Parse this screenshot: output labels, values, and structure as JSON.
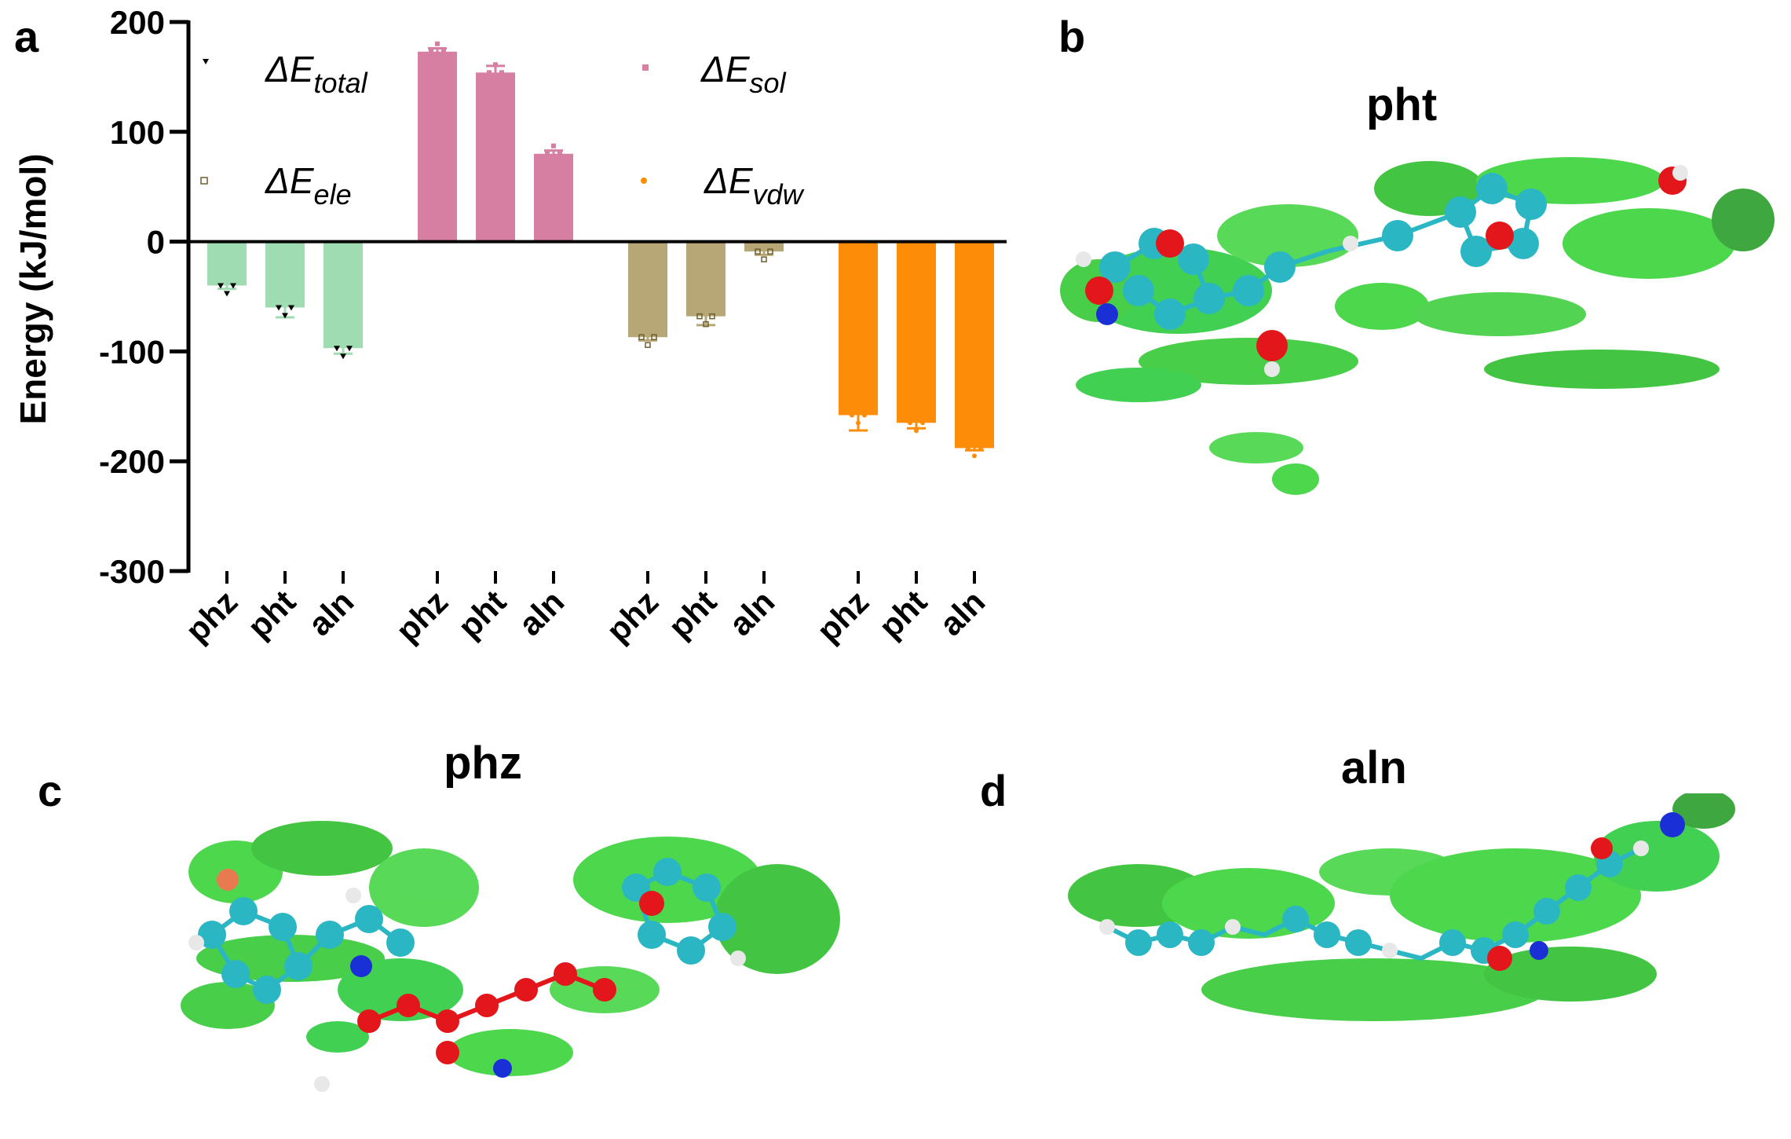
{
  "panels": {
    "a": "a",
    "b": "b",
    "c": "c",
    "d": "d"
  },
  "molecule_titles": {
    "b": "pht",
    "c": "phz",
    "d": "aln"
  },
  "colors": {
    "total": "#9fdcb2",
    "sol": "#d77fa3",
    "ele": "#b7a676",
    "vdw": "#fd8c08",
    "surface_green": "#3ad33a",
    "atom_carbon": "#2bb6c4",
    "atom_oxygen": "#e3161b",
    "atom_nitrogen": "#1a2fd6",
    "atom_hydrogen": "#e8e8e8"
  },
  "chart_data": {
    "type": "bar",
    "ylabel": "Energy (kJ/mol)",
    "ylim": [
      -300,
      200
    ],
    "yticks": [
      "200",
      "100",
      "0",
      "-100",
      "-200",
      "-300"
    ],
    "ytick_values": [
      200,
      100,
      0,
      -100,
      -200,
      -300
    ],
    "categories": [
      "phz",
      "pht",
      "aln"
    ],
    "series": [
      {
        "key": "total",
        "base": "ΔE",
        "sub": "total",
        "values": [
          -40,
          -60,
          -97
        ],
        "errors": [
          3,
          9,
          5
        ],
        "marker": "triangle"
      },
      {
        "key": "sol",
        "base": "ΔE",
        "sub": "sol",
        "values": [
          173,
          154,
          80
        ],
        "errors": [
          3,
          6,
          3
        ],
        "marker": "square"
      },
      {
        "key": "ele",
        "base": "ΔE",
        "sub": "ele",
        "values": [
          -87,
          -68,
          -9
        ],
        "errors": [
          3,
          8,
          3
        ],
        "marker": "square-open"
      },
      {
        "key": "vdw",
        "base": "ΔE",
        "sub": "vdw",
        "values": [
          -158,
          -165,
          -188
        ],
        "errors": [
          14,
          5,
          2
        ],
        "marker": "circle"
      }
    ],
    "legend_position": "top",
    "grid": false
  }
}
